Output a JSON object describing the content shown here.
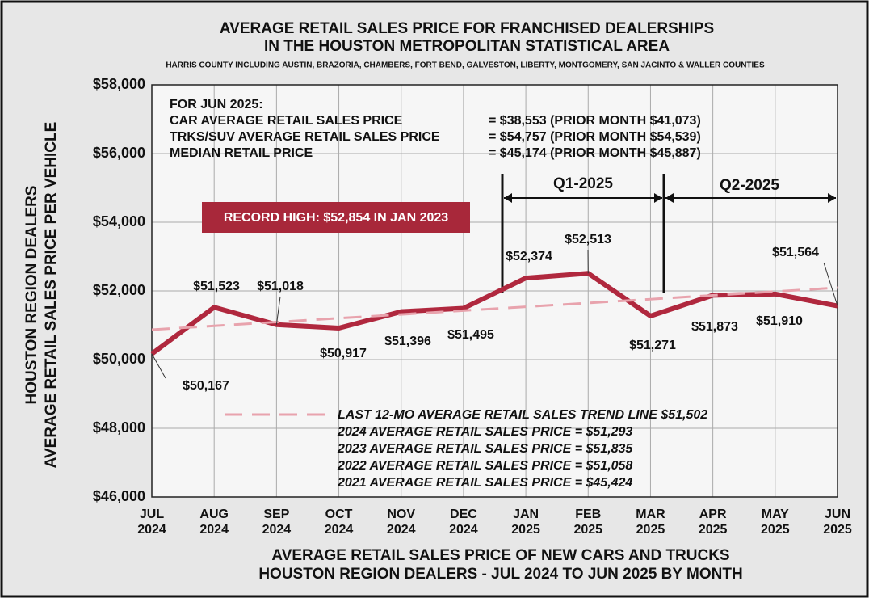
{
  "chart_data": {
    "type": "line",
    "title": [
      "AVERAGE RETAIL SALES PRICE FOR FRANCHISED DEALERSHIPS",
      "IN THE HOUSTON METROPOLITAN STATISTICAL AREA"
    ],
    "subtitle": "HARRIS COUNTY INCLUDING AUSTIN, BRAZORIA, CHAMBERS, FORT BEND, GALVESTON, LIBERTY, MONTGOMERY, SAN JACINTO & WALLER COUNTIES",
    "y_axis_label": [
      "HOUSTON REGION DEALERS",
      "AVERAGE RETAIL SALES PRICE PER VEHICLE"
    ],
    "x_axis_label": [
      "AVERAGE RETAIL SALES PRICE OF NEW CARS AND TRUCKS",
      "HOUSTON REGION DEALERS - JUL 2024 TO JUN 2025 BY MONTH"
    ],
    "categories": [
      "JUL 2024",
      "AUG 2024",
      "SEP 2024",
      "OCT 2024",
      "NOV 2024",
      "DEC 2024",
      "JAN 2025",
      "FEB 2025",
      "MAR 2025",
      "APR 2025",
      "MAY 2025",
      "JUN 2025"
    ],
    "series": [
      {
        "name": "AVERAGE RETAIL SALES PRICE",
        "color": "#b0283e",
        "values": [
          50167,
          51523,
          51018,
          50917,
          51396,
          51495,
          52374,
          52513,
          51271,
          51873,
          51910,
          51564
        ],
        "value_labels": [
          "$50,167",
          "$51,523",
          "$51,018",
          "$50,917",
          "$51,396",
          "$51,495",
          "$52,374",
          "$52,513",
          "$51,271",
          "$51,873",
          "$51,910",
          "$51,564"
        ]
      },
      {
        "name": "LAST 12-MO AVERAGE RETAIL SALES TREND LINE $51,502",
        "color": "#e8a3ad",
        "values": [
          50871,
          50982,
          51093,
          51205,
          51316,
          51427,
          51538,
          51649,
          51760,
          51872,
          51983,
          52094
        ]
      }
    ],
    "ylim": [
      46000,
      58000
    ],
    "yticks": [
      {
        "value": 46000,
        "label": "$46,000"
      },
      {
        "value": 48000,
        "label": "$48,000"
      },
      {
        "value": 50000,
        "label": "$50,000"
      },
      {
        "value": 52000,
        "label": "$52,000"
      },
      {
        "value": 54000,
        "label": "$54,000"
      },
      {
        "value": 56000,
        "label": "$56,000"
      },
      {
        "value": 58000,
        "label": "$58,000"
      }
    ],
    "grid": true,
    "info_box": {
      "heading": "FOR JUN 2025:",
      "rows": [
        [
          "CAR AVERAGE RETAIL SALES PRICE",
          "= $38,553 (PRIOR MONTH $41,073)"
        ],
        [
          "TRKS/SUV AVERAGE RETAIL SALES PRICE",
          "= $54,757 (PRIOR MONTH $54,539)"
        ],
        [
          "MEDIAN RETAIL PRICE",
          "= $45,174 (PRIOR MONTH $45,887)"
        ]
      ]
    },
    "annotations": {
      "record_high": "RECORD HIGH: $52,854 IN JAN 2023",
      "quarters": [
        "Q1-2025",
        "Q2-2025"
      ],
      "notes": [
        "2024 AVERAGE RETAIL SALES PRICE = $51,293",
        "2023 AVERAGE RETAIL SALES PRICE = $51,835",
        "2022 AVERAGE RETAIL SALES PRICE = $51,058",
        "2021 AVERAGE RETAIL SALES PRICE = $45,424"
      ]
    }
  }
}
